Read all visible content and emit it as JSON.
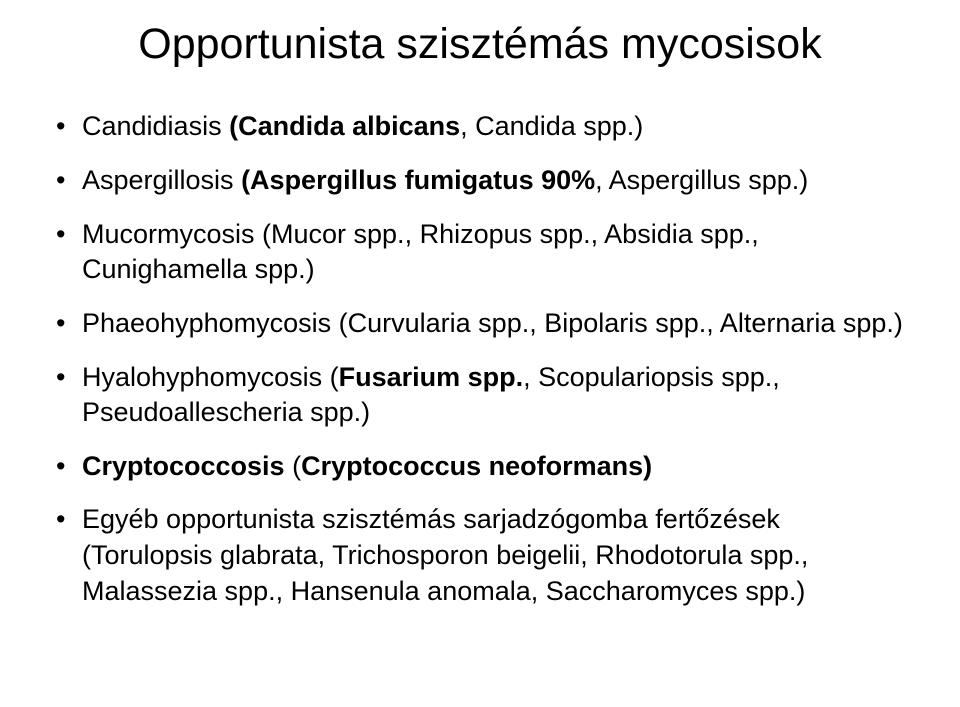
{
  "title": "Opportunista szisztémás mycosisok",
  "items": [
    {
      "pre": "Candidiasis ",
      "boldA": "(Candida albicans",
      "mid": ", Candida spp.)",
      "boldB": "",
      "post": ""
    },
    {
      "pre": "Aspergillosis ",
      "boldA": "(Aspergillus fumigatus 90%",
      "mid": ", Aspergillus spp.)",
      "boldB": "",
      "post": ""
    },
    {
      "pre": "Mucormycosis (Mucor spp., Rhizopus spp., Absidia spp., Cunighamella spp.)",
      "boldA": "",
      "mid": "",
      "boldB": "",
      "post": ""
    },
    {
      "pre": "Phaeohyphomycosis (Curvularia spp., Bipolaris spp., Alternaria spp.)",
      "boldA": "",
      "mid": "",
      "boldB": "",
      "post": ""
    },
    {
      "pre": "Hyalohyphomycosis (",
      "boldA": "Fusarium spp.",
      "mid": ", Scopulariopsis spp., Pseudoallescheria spp.)",
      "boldB": "",
      "post": ""
    },
    {
      "pre": "",
      "boldA": "Cryptococcosis",
      "mid": " (",
      "boldB": "Cryptococcus neoformans)",
      "post": ""
    },
    {
      "pre": "Egyéb opportunista szisztémás sarjadzógomba fertőzések (Torulopsis glabrata, Trichosporon beigelii, Rhodotorula spp., Malassezia spp., Hansenula anomala, Saccharomyces spp.)",
      "boldA": "",
      "mid": "",
      "boldB": "",
      "post": ""
    }
  ]
}
